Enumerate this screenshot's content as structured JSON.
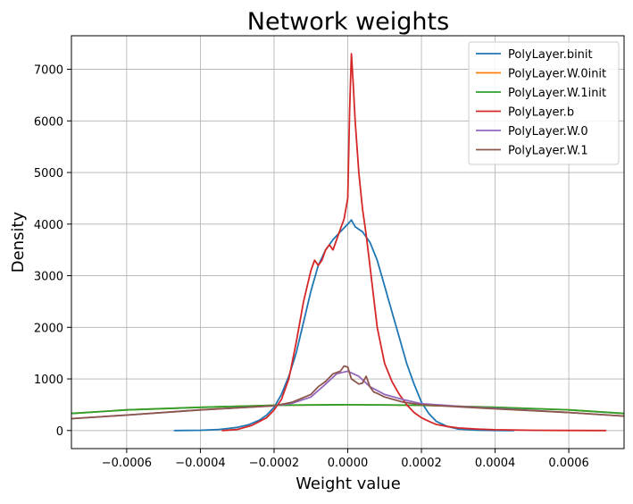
{
  "chart_data": {
    "type": "line",
    "title": "Network weights",
    "xlabel": "Weight value",
    "ylabel": "Density",
    "xlim": [
      -0.00075,
      0.00075
    ],
    "ylim": [
      -350,
      7650
    ],
    "grid": true,
    "legend_position": "top-right",
    "x_ticks": [
      -0.0006,
      -0.0004,
      -0.0002,
      0.0,
      0.0002,
      0.0004,
      0.0006
    ],
    "x_tick_labels": [
      "−0.0006",
      "−0.0004",
      "−0.0002",
      "0.0000",
      "0.0002",
      "0.0004",
      "0.0006"
    ],
    "y_ticks": [
      0,
      1000,
      2000,
      3000,
      4000,
      5000,
      6000,
      7000
    ],
    "y_tick_labels": [
      "0",
      "1000",
      "2000",
      "3000",
      "4000",
      "5000",
      "6000",
      "7000"
    ],
    "series": [
      {
        "name": "PolyLayer.binit",
        "color": "#1f77b4",
        "x": [
          -0.00047,
          -0.0004,
          -0.00035,
          -0.0003,
          -0.00027,
          -0.00024,
          -0.00022,
          -0.0002,
          -0.00018,
          -0.00016,
          -0.00014,
          -0.00012,
          -0.0001,
          -8e-05,
          -6e-05,
          -4e-05,
          -2e-05,
          0.0,
          1e-05,
          2e-05,
          4e-05,
          6e-05,
          8e-05,
          0.0001,
          0.00012,
          0.00014,
          0.00016,
          0.00018,
          0.0002,
          0.00022,
          0.00024,
          0.00027,
          0.0003,
          0.00035,
          0.0004,
          0.00045
        ],
        "y": [
          0,
          5,
          20,
          60,
          110,
          200,
          300,
          450,
          700,
          1050,
          1500,
          2100,
          2700,
          3200,
          3500,
          3700,
          3850,
          4000,
          4080,
          3950,
          3850,
          3650,
          3300,
          2800,
          2300,
          1800,
          1300,
          900,
          550,
          330,
          180,
          80,
          30,
          8,
          2,
          0
        ]
      },
      {
        "name": "PolyLayer.W.0init",
        "color": "#ff7f0e",
        "x": [
          -0.00075,
          -0.0006,
          -0.0004,
          -0.0002,
          0.0,
          0.0002,
          0.0004,
          0.0006,
          0.00075
        ],
        "y": [
          330,
          400,
          450,
          490,
          500,
          490,
          450,
          400,
          330
        ]
      },
      {
        "name": "PolyLayer.W.1init",
        "color": "#2ca02c",
        "x": [
          -0.00075,
          -0.0006,
          -0.0004,
          -0.0002,
          0.0,
          0.0002,
          0.0004,
          0.0006,
          0.00075
        ],
        "y": [
          330,
          400,
          450,
          490,
          500,
          490,
          450,
          400,
          330
        ]
      },
      {
        "name": "PolyLayer.b",
        "color": "#d62728",
        "x": [
          -0.00034,
          -0.0003,
          -0.00026,
          -0.00022,
          -0.0002,
          -0.00018,
          -0.00016,
          -0.00014,
          -0.00012,
          -0.0001,
          -9e-05,
          -8e-05,
          -7e-05,
          -6e-05,
          -5e-05,
          -4e-05,
          -3e-05,
          -2e-05,
          -1e-05,
          0.0,
          5e-06,
          1e-05,
          1.5e-05,
          2e-05,
          3e-05,
          4e-05,
          5e-05,
          6e-05,
          7e-05,
          8e-05,
          0.0001,
          0.00012,
          0.00014,
          0.00016,
          0.00018,
          0.0002,
          0.00022,
          0.00024,
          0.00027,
          0.0003,
          0.00035,
          0.0004,
          0.0005,
          0.0006,
          0.0007
        ],
        "y": [
          0,
          20,
          100,
          250,
          400,
          600,
          1000,
          1700,
          2500,
          3100,
          3300,
          3200,
          3300,
          3500,
          3600,
          3500,
          3700,
          3900,
          4100,
          4500,
          6200,
          7300,
          6700,
          6000,
          5000,
          4300,
          3800,
          3200,
          2600,
          2000,
          1300,
          950,
          700,
          500,
          350,
          250,
          180,
          120,
          80,
          50,
          30,
          15,
          5,
          2,
          0
        ]
      },
      {
        "name": "PolyLayer.W.0",
        "color": "#9467bd",
        "x": [
          -0.00075,
          -0.0006,
          -0.0004,
          -0.0003,
          -0.0002,
          -0.00015,
          -0.0001,
          -6e-05,
          -3e-05,
          0.0,
          3e-05,
          6e-05,
          0.0001,
          0.00015,
          0.0002,
          0.0003,
          0.0004,
          0.0006,
          0.00075
        ],
        "y": [
          230,
          300,
          400,
          440,
          480,
          530,
          650,
          900,
          1100,
          1150,
          1050,
          850,
          700,
          600,
          520,
          470,
          430,
          350,
          280
        ]
      },
      {
        "name": "PolyLayer.W.1",
        "color": "#8c564b",
        "x": [
          -0.00075,
          -0.0006,
          -0.0004,
          -0.0003,
          -0.0002,
          -0.00015,
          -0.0001,
          -8e-05,
          -6e-05,
          -4e-05,
          -2e-05,
          -1e-05,
          0.0,
          1e-05,
          2e-05,
          3e-05,
          4e-05,
          5e-05,
          6e-05,
          7e-05,
          8e-05,
          0.0001,
          0.00015,
          0.0002,
          0.0003,
          0.0004,
          0.0006,
          0.00075
        ],
        "y": [
          230,
          300,
          400,
          440,
          480,
          550,
          700,
          850,
          950,
          1100,
          1150,
          1250,
          1230,
          1000,
          950,
          900,
          920,
          1050,
          850,
          750,
          720,
          650,
          550,
          500,
          460,
          420,
          350,
          280
        ]
      }
    ]
  }
}
